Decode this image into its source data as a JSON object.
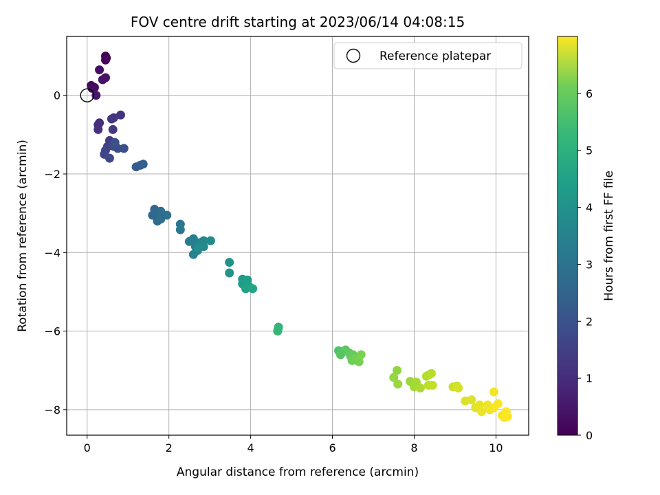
{
  "chart_data": {
    "type": "scatter",
    "title": "FOV centre drift starting at 2023/06/14 04:08:15",
    "xlabel": "Angular distance from reference (arcmin)",
    "ylabel": "Rotation from reference (arcmin)",
    "xlim": [
      -0.5,
      10.8
    ],
    "ylim": [
      -8.65,
      1.5
    ],
    "xticks": [
      0,
      2,
      4,
      6,
      8,
      10
    ],
    "yticks": [
      0,
      -2,
      -4,
      -6,
      -8
    ],
    "grid": true,
    "legend": {
      "placement": "top-right",
      "entries": [
        "Reference platepar"
      ]
    },
    "reference_point": {
      "x": 0,
      "y": 0
    },
    "colorbar": {
      "label": "Hours from first FF file",
      "range": [
        0,
        7
      ],
      "ticks": [
        0,
        1,
        2,
        3,
        4,
        5,
        6
      ],
      "colormap": "viridis"
    },
    "points": [
      {
        "x": 0.45,
        "y": 1.0,
        "t": 0.0
      },
      {
        "x": 0.47,
        "y": 0.95,
        "t": 0.05
      },
      {
        "x": 0.45,
        "y": 0.9,
        "t": 0.1
      },
      {
        "x": 0.1,
        "y": 0.25,
        "t": 0.15
      },
      {
        "x": 0.18,
        "y": 0.2,
        "t": 0.2
      },
      {
        "x": 0.12,
        "y": 0.18,
        "t": 0.25
      },
      {
        "x": 0.3,
        "y": 0.65,
        "t": 0.3
      },
      {
        "x": 0.45,
        "y": 0.45,
        "t": 0.35
      },
      {
        "x": 0.38,
        "y": 0.4,
        "t": 0.4
      },
      {
        "x": 0.22,
        "y": 0.0,
        "t": 0.45
      },
      {
        "x": 0.3,
        "y": -0.7,
        "t": 0.9
      },
      {
        "x": 0.27,
        "y": -0.75,
        "t": 0.95
      },
      {
        "x": 0.27,
        "y": -0.87,
        "t": 1.0
      },
      {
        "x": 0.82,
        "y": -0.5,
        "t": 1.05
      },
      {
        "x": 0.65,
        "y": -0.57,
        "t": 1.1
      },
      {
        "x": 0.6,
        "y": -0.6,
        "t": 1.15
      },
      {
        "x": 0.63,
        "y": -0.87,
        "t": 1.2
      },
      {
        "x": 0.55,
        "y": -1.15,
        "t": 1.25
      },
      {
        "x": 0.6,
        "y": -1.25,
        "t": 1.3
      },
      {
        "x": 0.5,
        "y": -1.3,
        "t": 1.35
      },
      {
        "x": 0.45,
        "y": -1.4,
        "t": 1.4
      },
      {
        "x": 0.42,
        "y": -1.5,
        "t": 1.45
      },
      {
        "x": 0.55,
        "y": -1.6,
        "t": 1.5
      },
      {
        "x": 0.65,
        "y": -1.3,
        "t": 1.55
      },
      {
        "x": 0.75,
        "y": -1.35,
        "t": 1.6
      },
      {
        "x": 0.9,
        "y": -1.35,
        "t": 1.65
      },
      {
        "x": 0.68,
        "y": -1.2,
        "t": 1.7
      },
      {
        "x": 1.2,
        "y": -1.82,
        "t": 2.0
      },
      {
        "x": 1.3,
        "y": -1.78,
        "t": 2.05
      },
      {
        "x": 1.37,
        "y": -1.75,
        "t": 2.1
      },
      {
        "x": 1.65,
        "y": -2.9,
        "t": 2.3
      },
      {
        "x": 1.6,
        "y": -3.05,
        "t": 2.35
      },
      {
        "x": 1.7,
        "y": -3.1,
        "t": 2.4
      },
      {
        "x": 1.72,
        "y": -3.2,
        "t": 2.45
      },
      {
        "x": 1.8,
        "y": -2.95,
        "t": 2.5
      },
      {
        "x": 1.8,
        "y": -3.15,
        "t": 2.55
      },
      {
        "x": 1.95,
        "y": -3.05,
        "t": 2.6
      },
      {
        "x": 2.28,
        "y": -3.28,
        "t": 2.75
      },
      {
        "x": 2.28,
        "y": -3.42,
        "t": 2.8
      },
      {
        "x": 2.5,
        "y": -3.72,
        "t": 2.95
      },
      {
        "x": 2.6,
        "y": -3.65,
        "t": 3.0
      },
      {
        "x": 2.65,
        "y": -3.85,
        "t": 3.05
      },
      {
        "x": 2.6,
        "y": -4.05,
        "t": 3.1
      },
      {
        "x": 2.7,
        "y": -3.95,
        "t": 3.15
      },
      {
        "x": 2.75,
        "y": -3.75,
        "t": 3.2
      },
      {
        "x": 2.85,
        "y": -3.7,
        "t": 3.25
      },
      {
        "x": 2.85,
        "y": -3.85,
        "t": 3.3
      },
      {
        "x": 3.02,
        "y": -3.7,
        "t": 3.35
      },
      {
        "x": 2.72,
        "y": -3.88,
        "t": 3.4
      },
      {
        "x": 3.48,
        "y": -4.25,
        "t": 3.55
      },
      {
        "x": 3.48,
        "y": -4.52,
        "t": 3.6
      },
      {
        "x": 3.8,
        "y": -4.68,
        "t": 3.75
      },
      {
        "x": 3.85,
        "y": -4.72,
        "t": 3.8
      },
      {
        "x": 3.8,
        "y": -4.8,
        "t": 3.85
      },
      {
        "x": 3.92,
        "y": -4.7,
        "t": 3.9
      },
      {
        "x": 3.95,
        "y": -4.85,
        "t": 3.95
      },
      {
        "x": 3.88,
        "y": -4.92,
        "t": 4.0
      },
      {
        "x": 4.05,
        "y": -4.92,
        "t": 4.05
      },
      {
        "x": 4.68,
        "y": -5.9,
        "t": 4.55
      },
      {
        "x": 4.67,
        "y": -5.95,
        "t": 4.6
      },
      {
        "x": 4.66,
        "y": -6.0,
        "t": 4.65
      },
      {
        "x": 6.15,
        "y": -6.5,
        "t": 5.05
      },
      {
        "x": 6.25,
        "y": -6.52,
        "t": 5.1
      },
      {
        "x": 6.2,
        "y": -6.6,
        "t": 5.15
      },
      {
        "x": 6.32,
        "y": -6.48,
        "t": 5.2
      },
      {
        "x": 6.4,
        "y": -6.55,
        "t": 5.25
      },
      {
        "x": 6.45,
        "y": -6.65,
        "t": 5.3
      },
      {
        "x": 6.5,
        "y": -6.6,
        "t": 5.35
      },
      {
        "x": 6.48,
        "y": -6.75,
        "t": 5.4
      },
      {
        "x": 6.55,
        "y": -6.7,
        "t": 5.45
      },
      {
        "x": 6.6,
        "y": -6.75,
        "t": 5.5
      },
      {
        "x": 6.65,
        "y": -6.78,
        "t": 5.55
      },
      {
        "x": 6.7,
        "y": -6.6,
        "t": 5.6
      },
      {
        "x": 7.58,
        "y": -7.0,
        "t": 5.8
      },
      {
        "x": 7.5,
        "y": -7.18,
        "t": 5.85
      },
      {
        "x": 7.6,
        "y": -7.35,
        "t": 5.9
      },
      {
        "x": 7.9,
        "y": -7.28,
        "t": 5.95
      },
      {
        "x": 8.0,
        "y": -7.42,
        "t": 6.0
      },
      {
        "x": 8.05,
        "y": -7.3,
        "t": 6.05
      },
      {
        "x": 8.15,
        "y": -7.45,
        "t": 6.1
      },
      {
        "x": 8.3,
        "y": -7.15,
        "t": 6.15
      },
      {
        "x": 8.35,
        "y": -7.12,
        "t": 6.2
      },
      {
        "x": 8.42,
        "y": -7.08,
        "t": 6.25
      },
      {
        "x": 8.35,
        "y": -7.38,
        "t": 6.3
      },
      {
        "x": 8.45,
        "y": -7.38,
        "t": 6.35
      },
      {
        "x": 8.95,
        "y": -7.42,
        "t": 6.45
      },
      {
        "x": 9.05,
        "y": -7.4,
        "t": 6.5
      },
      {
        "x": 9.08,
        "y": -7.45,
        "t": 6.55
      },
      {
        "x": 9.25,
        "y": -7.78,
        "t": 6.6
      },
      {
        "x": 9.4,
        "y": -7.75,
        "t": 6.65
      },
      {
        "x": 9.5,
        "y": -7.95,
        "t": 6.7
      },
      {
        "x": 9.6,
        "y": -7.88,
        "t": 6.75
      },
      {
        "x": 9.65,
        "y": -8.05,
        "t": 6.8
      },
      {
        "x": 9.8,
        "y": -7.88,
        "t": 6.83
      },
      {
        "x": 9.85,
        "y": -8.0,
        "t": 6.86
      },
      {
        "x": 9.95,
        "y": -7.55,
        "t": 6.88
      },
      {
        "x": 9.95,
        "y": -7.95,
        "t": 6.9
      },
      {
        "x": 10.05,
        "y": -7.85,
        "t": 6.92
      },
      {
        "x": 10.15,
        "y": -8.15,
        "t": 6.95
      },
      {
        "x": 10.2,
        "y": -8.2,
        "t": 6.97
      },
      {
        "x": 10.25,
        "y": -8.05,
        "t": 6.98
      },
      {
        "x": 10.28,
        "y": -8.18,
        "t": 7.0
      }
    ]
  }
}
